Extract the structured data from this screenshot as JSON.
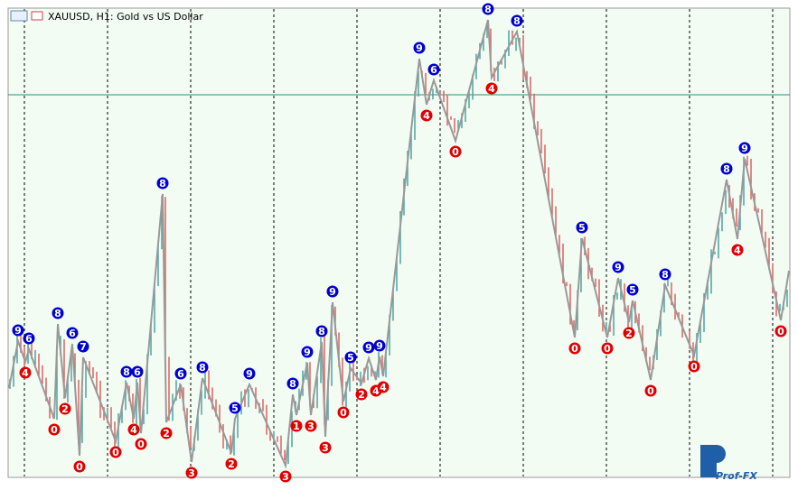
{
  "header": {
    "title": "XAUUSD, H1:  Gold vs US Dollar"
  },
  "watermark": "Prof-FX",
  "up_color": "#0000d0",
  "down_color": "#e00000",
  "markers": [
    {
      "label": "9",
      "kind": "up"
    },
    {
      "label": "6",
      "kind": "up"
    },
    {
      "label": "8",
      "kind": "up"
    },
    {
      "label": "6",
      "kind": "up"
    },
    {
      "label": "7",
      "kind": "up"
    },
    {
      "label": "8",
      "kind": "up"
    },
    {
      "label": "6",
      "kind": "up"
    },
    {
      "label": "8",
      "kind": "up"
    },
    {
      "label": "6",
      "kind": "up"
    },
    {
      "label": "8",
      "kind": "up"
    },
    {
      "label": "5",
      "kind": "up"
    },
    {
      "label": "9",
      "kind": "up"
    },
    {
      "label": "8",
      "kind": "up"
    },
    {
      "label": "9",
      "kind": "up"
    },
    {
      "label": "8",
      "kind": "up"
    },
    {
      "label": "9",
      "kind": "up"
    },
    {
      "label": "5",
      "kind": "up"
    },
    {
      "label": "9",
      "kind": "up"
    },
    {
      "label": "9",
      "kind": "up"
    },
    {
      "label": "9",
      "kind": "up"
    },
    {
      "label": "6",
      "kind": "up"
    },
    {
      "label": "8",
      "kind": "up"
    },
    {
      "label": "8",
      "kind": "up"
    },
    {
      "label": "5",
      "kind": "up"
    },
    {
      "label": "9",
      "kind": "up"
    },
    {
      "label": "5",
      "kind": "up"
    },
    {
      "label": "8",
      "kind": "up"
    },
    {
      "label": "8",
      "kind": "up"
    },
    {
      "label": "9",
      "kind": "up"
    },
    {
      "label": "4",
      "kind": "down"
    },
    {
      "label": "0",
      "kind": "down"
    },
    {
      "label": "2",
      "kind": "down"
    },
    {
      "label": "0",
      "kind": "down"
    },
    {
      "label": "0",
      "kind": "down"
    },
    {
      "label": "4",
      "kind": "down"
    },
    {
      "label": "0",
      "kind": "down"
    },
    {
      "label": "2",
      "kind": "down"
    },
    {
      "label": "3",
      "kind": "down"
    },
    {
      "label": "2",
      "kind": "down"
    },
    {
      "label": "3",
      "kind": "down"
    },
    {
      "label": "1",
      "kind": "down"
    },
    {
      "label": "3",
      "kind": "down"
    },
    {
      "label": "3",
      "kind": "down"
    },
    {
      "label": "0",
      "kind": "down"
    },
    {
      "label": "2",
      "kind": "down"
    },
    {
      "label": "4",
      "kind": "down"
    },
    {
      "label": "4",
      "kind": "down"
    },
    {
      "label": "4",
      "kind": "down"
    },
    {
      "label": "0",
      "kind": "down"
    },
    {
      "label": "4",
      "kind": "down"
    },
    {
      "label": "0",
      "kind": "down"
    },
    {
      "label": "0",
      "kind": "down"
    },
    {
      "label": "2",
      "kind": "down"
    },
    {
      "label": "0",
      "kind": "down"
    },
    {
      "label": "0",
      "kind": "down"
    },
    {
      "label": "4",
      "kind": "down"
    },
    {
      "label": "0",
      "kind": "down"
    }
  ]
}
